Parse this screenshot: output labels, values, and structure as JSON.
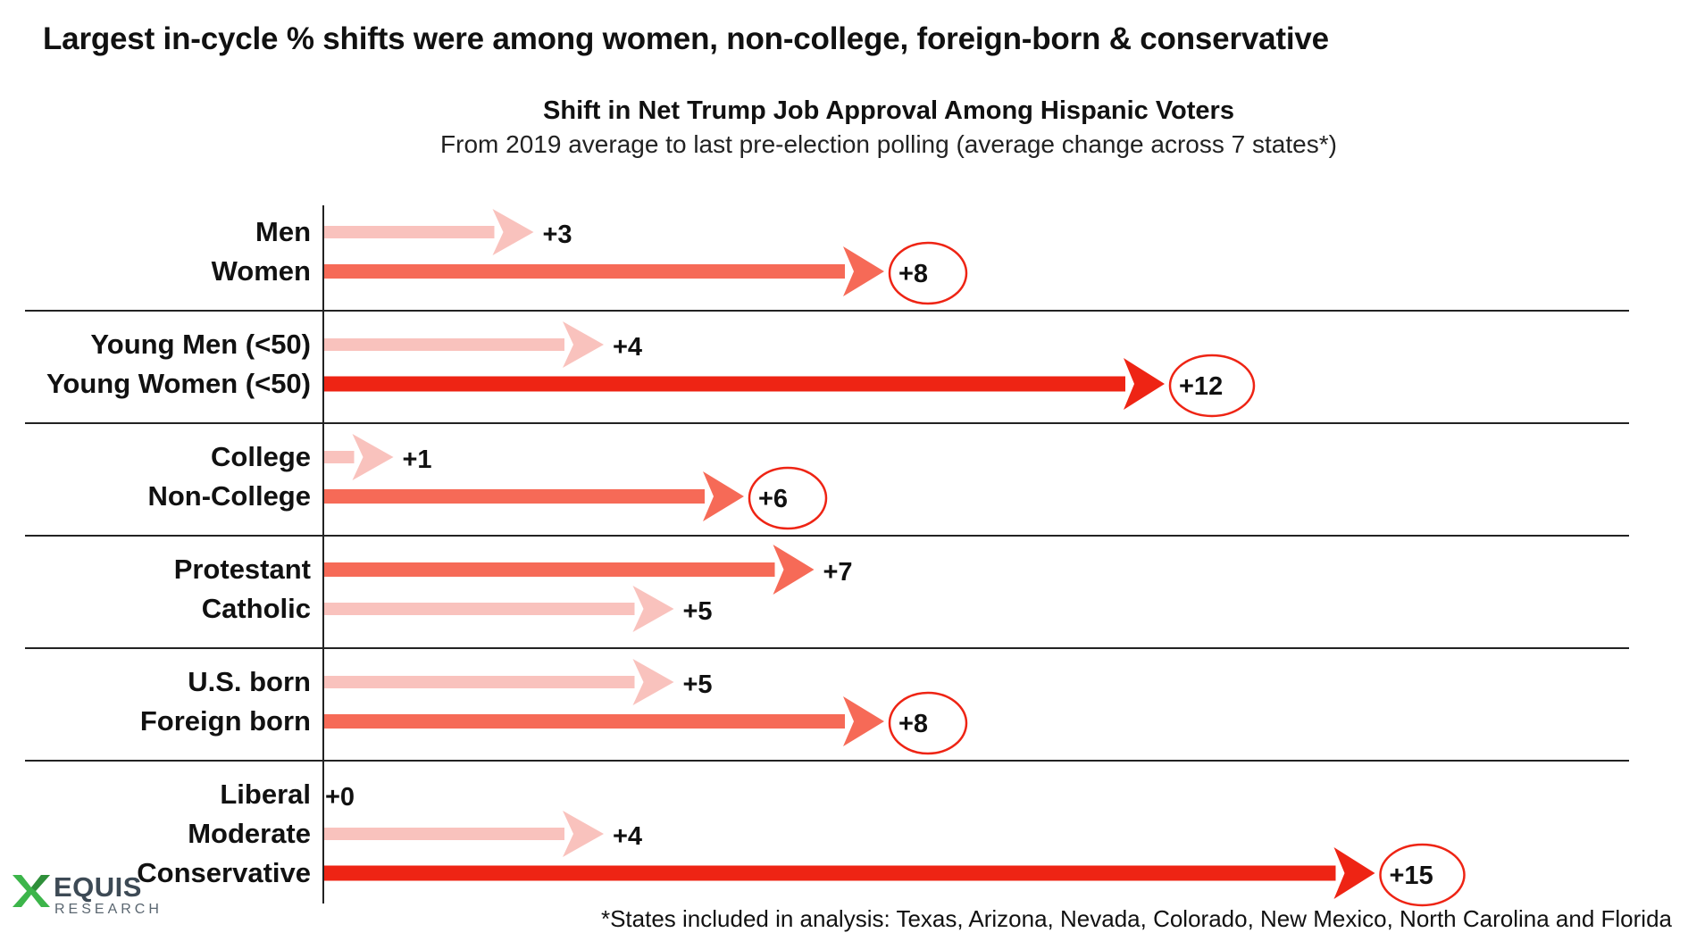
{
  "headline": "Largest in-cycle % shifts were among women, non-college, foreign-born & conservative",
  "footnote": "*States included in analysis: Texas, Arizona, Nevada, Colorado, New Mexico, North Carolina and Florida",
  "logo": {
    "name": "EQUIS",
    "sub": "RESEARCH",
    "icon": "equis-x-icon"
  },
  "colors": {
    "light": "#f9c2bd",
    "medium": "#f66a57",
    "strong": "#ee2414",
    "circle": "#ee2414"
  },
  "chart_data": {
    "type": "bar",
    "title": "Shift in Net Trump Job Approval Among Hispanic Voters",
    "subtitle": "From 2019 average to last pre-election polling (average change across 7 states*)",
    "xlim": [
      0,
      15
    ],
    "groups": [
      {
        "rows": [
          {
            "label": "Men",
            "value": 3,
            "display": "+3",
            "intensity": "light",
            "circled": false
          },
          {
            "label": "Women",
            "value": 8,
            "display": "+8",
            "intensity": "medium",
            "circled": true
          }
        ]
      },
      {
        "rows": [
          {
            "label": "Young Men (<50)",
            "value": 4,
            "display": "+4",
            "intensity": "light",
            "circled": false
          },
          {
            "label": "Young Women (<50)",
            "value": 12,
            "display": "+12",
            "intensity": "strong",
            "circled": true
          }
        ]
      },
      {
        "rows": [
          {
            "label": "College",
            "value": 1,
            "display": "+1",
            "intensity": "light",
            "circled": false
          },
          {
            "label": "Non-College",
            "value": 6,
            "display": "+6",
            "intensity": "medium",
            "circled": true
          }
        ]
      },
      {
        "rows": [
          {
            "label": "Protestant",
            "value": 7,
            "display": "+7",
            "intensity": "medium",
            "circled": false
          },
          {
            "label": "Catholic",
            "value": 5,
            "display": "+5",
            "intensity": "light",
            "circled": false
          }
        ]
      },
      {
        "rows": [
          {
            "label": "U.S. born",
            "value": 5,
            "display": "+5",
            "intensity": "light",
            "circled": false
          },
          {
            "label": "Foreign born",
            "value": 8,
            "display": "+8",
            "intensity": "medium",
            "circled": true
          }
        ]
      },
      {
        "rows": [
          {
            "label": "Liberal",
            "value": 0,
            "display": "+0",
            "intensity": "light",
            "circled": false
          },
          {
            "label": "Moderate",
            "value": 4,
            "display": "+4",
            "intensity": "light",
            "circled": false
          },
          {
            "label": "Conservative",
            "value": 15,
            "display": "+15",
            "intensity": "strong",
            "circled": true
          }
        ]
      }
    ]
  }
}
